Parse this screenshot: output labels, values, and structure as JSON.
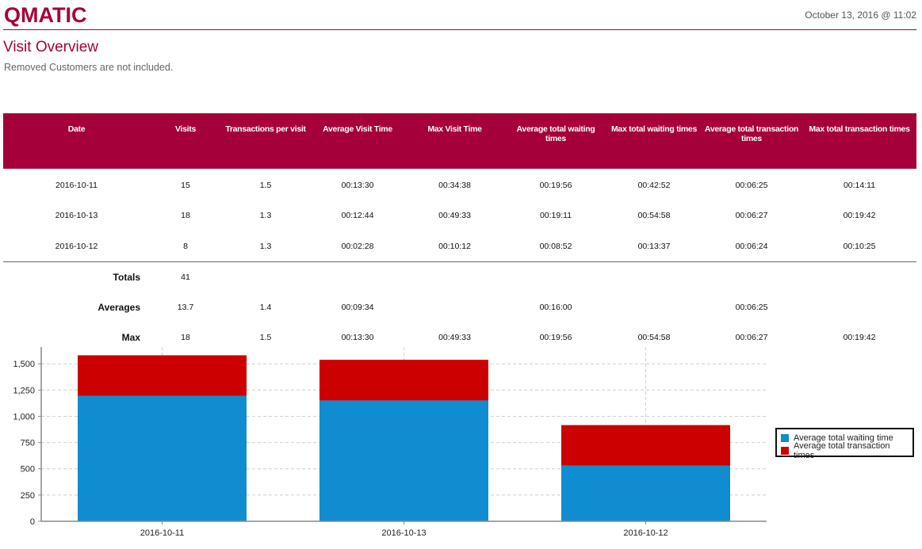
{
  "header": {
    "logo": "QMATIC",
    "date": "October 13, 2016 @ 11:02",
    "brand_color": "#a6003a"
  },
  "page": {
    "title": "Visit Overview",
    "subtitle": "Removed Customers are not included."
  },
  "table": {
    "columns": [
      "Date",
      "Visits",
      "Transactions per visit",
      "Average Visit Time",
      "Max Visit Time",
      "Average total waiting times",
      "Max total waiting times",
      "Average total transaction times",
      "Max total transaction times"
    ],
    "rows": [
      [
        "2016-10-11",
        "15",
        "1.5",
        "00:13:30",
        "00:34:38",
        "00:19:56",
        "00:42:52",
        "00:06:25",
        "00:14:11"
      ],
      [
        "2016-10-13",
        "18",
        "1.3",
        "00:12:44",
        "00:49:33",
        "00:19:11",
        "00:54:58",
        "00:06:27",
        "00:19:42"
      ],
      [
        "2016-10-12",
        "8",
        "1.3",
        "00:02:28",
        "00:10:12",
        "00:08:52",
        "00:13:37",
        "00:06:24",
        "00:10:25"
      ]
    ],
    "summary": [
      [
        "Totals",
        "41",
        "",
        "",
        "",
        "",
        "",
        "",
        ""
      ],
      [
        "Averages",
        "13.7",
        "1.4",
        "00:09:34",
        "",
        "00:16:00",
        "",
        "00:06:25",
        ""
      ],
      [
        "Max",
        "18",
        "1.5",
        "00:13:30",
        "00:49:33",
        "00:19:56",
        "00:54:58",
        "00:06:27",
        "00:19:42"
      ]
    ]
  },
  "chart_data": {
    "type": "bar",
    "stacked": true,
    "title": "",
    "xlabel": "",
    "ylabel": "",
    "categories": [
      "2016-10-11",
      "2016-10-13",
      "2016-10-12"
    ],
    "series": [
      {
        "name": "Average total waiting time",
        "color": "#0f8dd0",
        "values": [
          1196,
          1151,
          532
        ]
      },
      {
        "name": "Average total transaction times",
        "color": "#cc0000",
        "values": [
          385,
          387,
          384
        ]
      }
    ],
    "ylim": [
      0,
      1660
    ],
    "yticks": [
      0,
      250,
      500,
      750,
      1000,
      1250,
      1500
    ],
    "ytick_labels": [
      "0",
      "250",
      "500",
      "750",
      "1,000",
      "1,250",
      "1,500"
    ],
    "grid": true,
    "legend_position": "right"
  }
}
